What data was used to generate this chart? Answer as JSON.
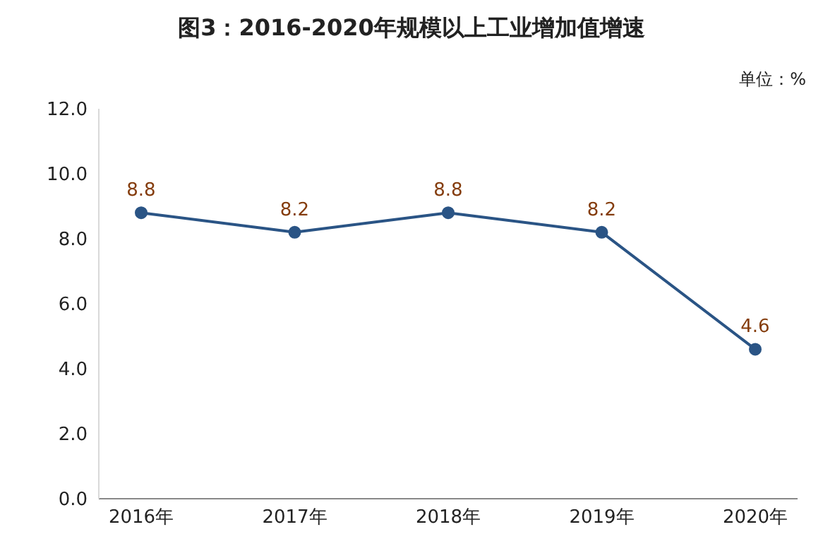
{
  "chart_data": {
    "type": "line",
    "title": "图3：2016-2020年规模以上工业增加值增速",
    "annotations": [
      "单位：%"
    ],
    "categories": [
      "2016年",
      "2017年",
      "2018年",
      "2019年",
      "2020年"
    ],
    "series": [
      {
        "color": "#2a5485",
        "values": [
          8.8,
          8.2,
          8.8,
          8.2,
          4.6
        ]
      }
    ],
    "ylim": [
      0,
      12
    ],
    "yticks": [
      {
        "value": 0,
        "label": "0.0"
      },
      {
        "value": 2,
        "label": "2.0"
      },
      {
        "value": 4,
        "label": "4.0"
      },
      {
        "value": 6,
        "label": "6.0"
      },
      {
        "value": 8,
        "label": "8.0"
      },
      {
        "value": 10,
        "label": "10.0"
      },
      {
        "value": 12,
        "label": "12.0"
      }
    ],
    "data_labels": true,
    "marker": "circle",
    "line_style": "solid",
    "grid": false,
    "legend": false
  }
}
